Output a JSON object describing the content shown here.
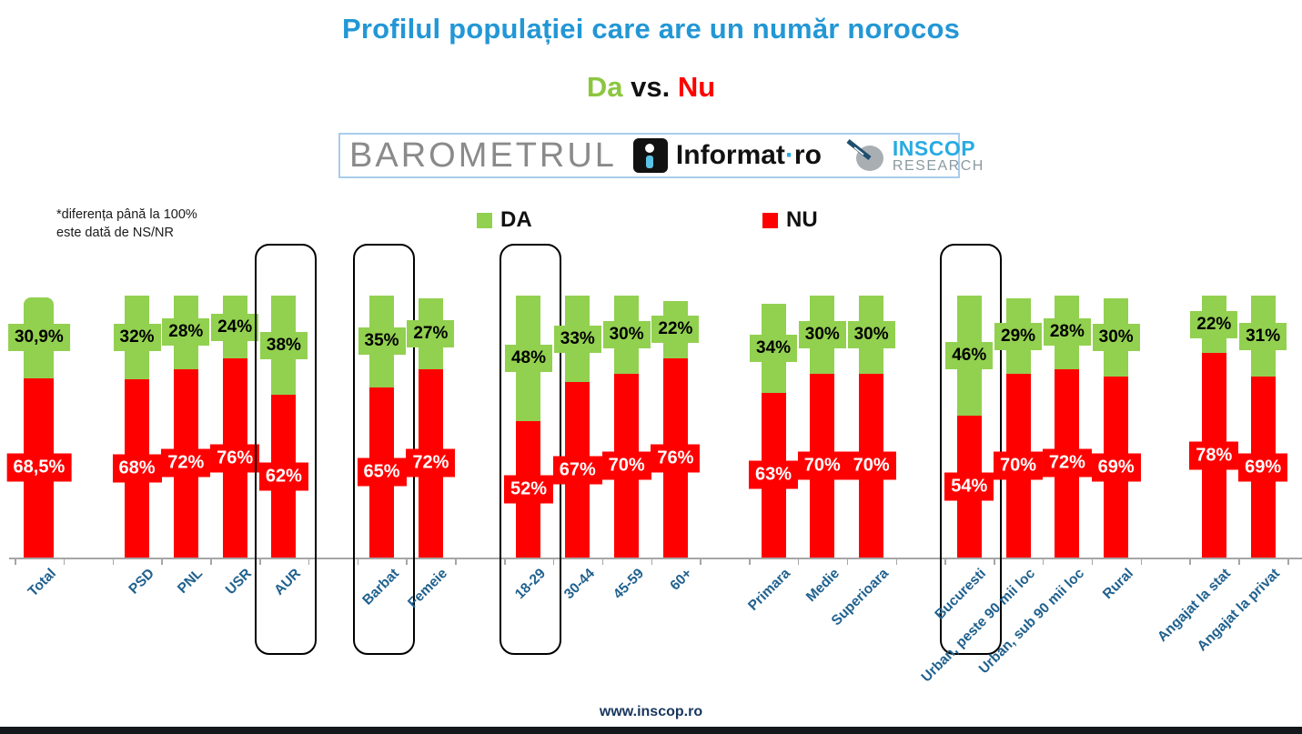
{
  "title": "Profilul populației care are un număr norocos",
  "subtitle": {
    "da": "Da",
    "vs": "vs.",
    "nu": "Nu"
  },
  "banner": {
    "barometrul": "BAROMETRUL",
    "informat_name": "Informat",
    "informat_dot": "·",
    "informat_tld": "ro",
    "inscop_line1": "INSCOP",
    "inscop_line2": "RESEARCH"
  },
  "note": {
    "line1": "*diferența până la 100%",
    "line2": "este dată de NS/NR"
  },
  "legend": [
    {
      "label": "DA",
      "color": "#92d050"
    },
    {
      "label": "NU",
      "color": "#ff0000"
    }
  ],
  "footer": "www.inscop.ro",
  "colors": {
    "title_blue": "#2397d5",
    "subtitle_da_green": "#8cc63f",
    "subtitle_nu_red": "#ff0000",
    "axis_label_blue": "#20618e",
    "bar_green": "#92d050",
    "bar_red": "#ff0000"
  },
  "chart_data": {
    "type": "bar",
    "stacked": true,
    "unit": "%",
    "ylim": [
      0,
      100
    ],
    "legend_position": "top",
    "grid": false,
    "note": "*diferența până la 100% este dată de NS/NR",
    "series": [
      {
        "name": "DA",
        "color": "#92d050"
      },
      {
        "name": "NU",
        "color": "#ff0000"
      }
    ],
    "categories": [
      {
        "label": "Total",
        "group": 0,
        "da": 30.9,
        "nu": 68.5,
        "da_label": "30,9%",
        "nu_label": "68,5%",
        "highlighted": false
      },
      {
        "label": "PSD",
        "group": 1,
        "da": 32,
        "nu": 68,
        "da_label": "32%",
        "nu_label": "68%",
        "highlighted": false
      },
      {
        "label": "PNL",
        "group": 1,
        "da": 28,
        "nu": 72,
        "da_label": "28%",
        "nu_label": "72%",
        "highlighted": false
      },
      {
        "label": "USR",
        "group": 1,
        "da": 24,
        "nu": 76,
        "da_label": "24%",
        "nu_label": "76%",
        "highlighted": false
      },
      {
        "label": "AUR",
        "group": 1,
        "da": 38,
        "nu": 62,
        "da_label": "38%",
        "nu_label": "62%",
        "highlighted": true
      },
      {
        "label": "Barbat",
        "group": 2,
        "da": 35,
        "nu": 65,
        "da_label": "35%",
        "nu_label": "65%",
        "highlighted": true
      },
      {
        "label": "Femeie",
        "group": 2,
        "da": 27,
        "nu": 72,
        "da_label": "27%",
        "nu_label": "72%",
        "highlighted": false
      },
      {
        "label": "18-29",
        "group": 3,
        "da": 48,
        "nu": 52,
        "da_label": "48%",
        "nu_label": "52%",
        "highlighted": true
      },
      {
        "label": "30-44",
        "group": 3,
        "da": 33,
        "nu": 67,
        "da_label": "33%",
        "nu_label": "67%",
        "highlighted": false
      },
      {
        "label": "45-59",
        "group": 3,
        "da": 30,
        "nu": 70,
        "da_label": "30%",
        "nu_label": "70%",
        "highlighted": false
      },
      {
        "label": "60+",
        "group": 3,
        "da": 22,
        "nu": 76,
        "da_label": "22%",
        "nu_label": "76%",
        "highlighted": false
      },
      {
        "label": "Primara",
        "group": 4,
        "da": 34,
        "nu": 63,
        "da_label": "34%",
        "nu_label": "63%",
        "highlighted": false
      },
      {
        "label": "Medie",
        "group": 4,
        "da": 30,
        "nu": 70,
        "da_label": "30%",
        "nu_label": "70%",
        "highlighted": false
      },
      {
        "label": "Superioara",
        "group": 4,
        "da": 30,
        "nu": 70,
        "da_label": "30%",
        "nu_label": "70%",
        "highlighted": false
      },
      {
        "label": "Bucuresti",
        "group": 5,
        "da": 46,
        "nu": 54,
        "da_label": "46%",
        "nu_label": "54%",
        "highlighted": true
      },
      {
        "label": "Urban, peste 90 mii loc",
        "group": 5,
        "da": 29,
        "nu": 70,
        "da_label": "29%",
        "nu_label": "70%",
        "highlighted": false
      },
      {
        "label": "Urban, sub 90 mii loc",
        "group": 5,
        "da": 28,
        "nu": 72,
        "da_label": "28%",
        "nu_label": "72%",
        "highlighted": false
      },
      {
        "label": "Rural",
        "group": 5,
        "da": 30,
        "nu": 69,
        "da_label": "30%",
        "nu_label": "69%",
        "highlighted": false
      },
      {
        "label": "Angajat la stat",
        "group": 6,
        "da": 22,
        "nu": 78,
        "da_label": "22%",
        "nu_label": "78%",
        "highlighted": false
      },
      {
        "label": "Angajat la privat",
        "group": 6,
        "da": 31,
        "nu": 69,
        "da_label": "31%",
        "nu_label": "69%",
        "highlighted": false
      }
    ]
  }
}
